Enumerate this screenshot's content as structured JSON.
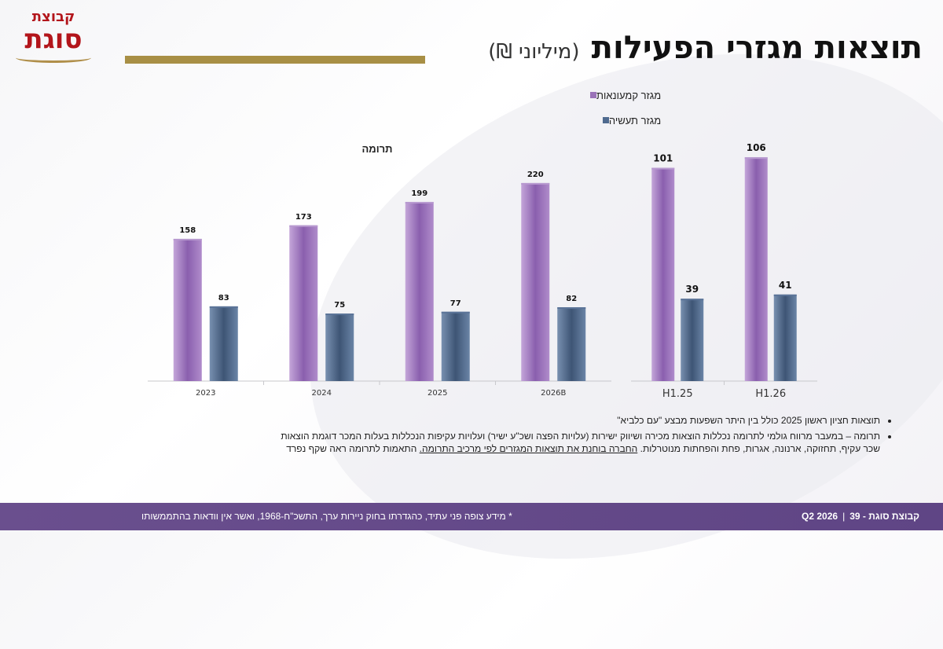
{
  "logo": {
    "line1": "קבוצת",
    "line2": "סוגת"
  },
  "header": {
    "title": "תוצאות מגזרי הפעילות",
    "unit": "(מיליוני ₪)"
  },
  "legend": {
    "items": [
      {
        "label": "מגזר קמעונאות",
        "color": "#9a73b8"
      },
      {
        "label": "מגזר תעשיה",
        "color": "#4f6a8f"
      }
    ]
  },
  "chart_data": [
    {
      "type": "bar",
      "title": "תרומה",
      "categories": [
        "2023",
        "2024",
        "2025",
        "2026B"
      ],
      "series": [
        {
          "name": "מגזר קמעונאות",
          "values": [
            158,
            173,
            199,
            220
          ],
          "color": "#9a73b8"
        },
        {
          "name": "מגזר תעשיה",
          "values": [
            83,
            75,
            77,
            82
          ],
          "color": "#4f6a8f"
        }
      ],
      "ylim": [
        0,
        240
      ],
      "grid": false
    },
    {
      "type": "bar",
      "title": "",
      "categories": [
        "H1.25",
        "H1.26"
      ],
      "series": [
        {
          "name": "מגזר קמעונאות",
          "values": [
            101,
            106
          ],
          "color": "#9a73b8"
        },
        {
          "name": "מגזר תעשיה",
          "values": [
            39,
            41
          ],
          "color": "#4f6a8f"
        }
      ],
      "ylim": [
        0,
        115
      ],
      "grid": false
    }
  ],
  "notes": {
    "bullet1": "תוצאות חציון ראשון 2025 כולל בין היתר השפעות מבצע \"עם כלביא\"",
    "bullet2_a": "תרומה – במעבר מרווח גולמי לתרומה נכללות הוצאות מכירה ושיווק ישירות (עלויות הפצה ושכ\"ע ישיר) ועלויות עקיפות הנכללות בעלות המכר דוגמת הוצאות שכר עקיף, תחזוקה, ארנונה, אגרות, פחת והפחתות מנוטרלות.",
    "bullet2_link": "החברה בוחנת את תוצאות המגזרים לפי מרכיב התרומה.",
    "bullet2_b": " התאמות לתרומה ראה שקף נפרד"
  },
  "footer": {
    "disclaimer": "* מידע צופה פני עתיד, כהגדרתו בחוק ניירות ערך, התשכ\"ח-1968, ואשר אין וודאות בהתממשותו",
    "page_number": "39",
    "company_period": "קבוצת סוגת - Q2 2026"
  }
}
